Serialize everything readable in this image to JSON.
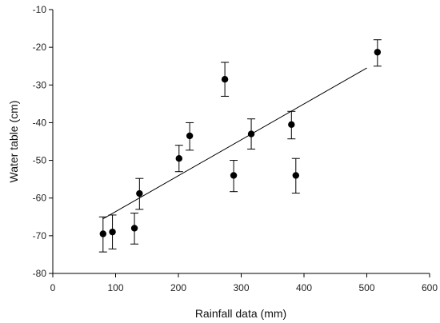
{
  "chart_data": {
    "type": "scatter",
    "title": "",
    "xlabel": "Rainfall data (mm)",
    "ylabel": "Water table (cm)",
    "xlim": [
      0,
      600
    ],
    "ylim": [
      -80,
      -10
    ],
    "x_ticks": [
      "0",
      "100",
      "200",
      "300",
      "400",
      "500",
      "600"
    ],
    "y_ticks": [
      "-10",
      "-20",
      "-30",
      "-40",
      "-50",
      "-60",
      "-70",
      "-80"
    ],
    "grid": false,
    "legend": "none",
    "points": [
      {
        "x": 80,
        "y": -69.5,
        "err_low": -74.3,
        "err_high": -65.0
      },
      {
        "x": 95,
        "y": -69.0,
        "err_low": -73.5,
        "err_high": -64.5
      },
      {
        "x": 130,
        "y": -68.0,
        "err_low": -72.2,
        "err_high": -64.0
      },
      {
        "x": 138,
        "y": -58.8,
        "err_low": -63.0,
        "err_high": -54.8
      },
      {
        "x": 201,
        "y": -49.5,
        "err_low": -53.0,
        "err_high": -46.0
      },
      {
        "x": 218,
        "y": -43.5,
        "err_low": -47.3,
        "err_high": -40.0
      },
      {
        "x": 274,
        "y": -28.5,
        "err_low": -33.0,
        "err_high": -24.0
      },
      {
        "x": 288,
        "y": -54.0,
        "err_low": -58.3,
        "err_high": -50.0
      },
      {
        "x": 316,
        "y": -43.0,
        "err_low": -47.0,
        "err_high": -39.0
      },
      {
        "x": 380,
        "y": -40.5,
        "err_low": -44.3,
        "err_high": -37.0
      },
      {
        "x": 387,
        "y": -54.0,
        "err_low": -58.7,
        "err_high": -49.5
      },
      {
        "x": 517,
        "y": -21.3,
        "err_low": -25.0,
        "err_high": -18.0
      }
    ],
    "trendline": {
      "x": [
        80,
        500
      ],
      "y": [
        -65.5,
        -25.5
      ]
    }
  }
}
